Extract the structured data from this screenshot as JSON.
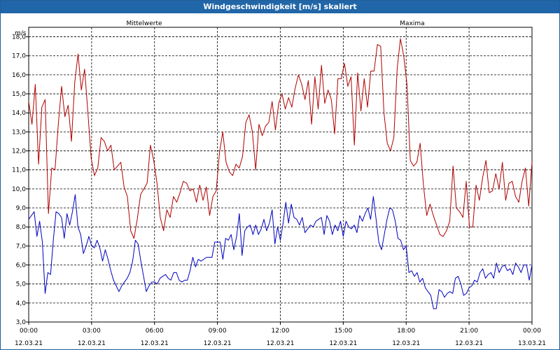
{
  "window": {
    "title": "Windgeschwindigkeit [m/s] skaliert"
  },
  "chart_data": {
    "type": "line",
    "title": "Windgeschwindigkeit [m/s] skaliert",
    "ylabel": "m/s",
    "ylim": [
      3.0,
      18.5
    ],
    "yticks": [
      3.0,
      4.0,
      5.0,
      6.0,
      7.0,
      8.0,
      9.0,
      10.0,
      11.0,
      12.0,
      13.0,
      14.0,
      15.0,
      16.0,
      17.0,
      18.0
    ],
    "ytick_labels": [
      "3,0",
      "4,0",
      "5,0",
      "6,0",
      "7,0",
      "8,0",
      "9,0",
      "10,0",
      "11,0",
      "12,0",
      "13,0",
      "14,0",
      "15,0",
      "16,0",
      "17,0",
      "18,0"
    ],
    "xlim": [
      0,
      24
    ],
    "xticks": [
      0,
      3,
      6,
      9,
      12,
      15,
      18,
      21,
      24
    ],
    "xtick_time_labels": [
      "00:00",
      "03:00",
      "06:00",
      "09:00",
      "12:00",
      "15:00",
      "18:00",
      "21:00",
      "00:00"
    ],
    "xtick_date_labels": [
      "12.03.21",
      "12.03.21",
      "12.03.21",
      "12.03.21",
      "12.03.21",
      "12.03.21",
      "12.03.21",
      "12.03.21",
      "13.03.21"
    ],
    "grid": true,
    "x_unit": "hours",
    "series": [
      {
        "name": "Mittelwerte",
        "color": "#0000c0",
        "values": [
          8.4,
          8.6,
          8.8,
          7.5,
          8.3,
          7.2,
          4.5,
          5.6,
          5.5,
          7.3,
          8.8,
          8.7,
          8.5,
          7.4,
          8.7,
          8.1,
          8.8,
          9.7,
          8.0,
          7.6,
          6.6,
          7.0,
          7.5,
          7.0,
          6.9,
          7.3,
          6.9,
          6.2,
          6.8,
          6.3,
          5.7,
          5.2,
          4.9,
          4.6,
          4.9,
          5.1,
          5.3,
          5.6,
          6.2,
          7.3,
          7.1,
          6.2,
          5.4,
          4.6,
          4.9,
          5.1,
          5.1,
          5.0,
          5.3,
          5.4,
          5.5,
          5.3,
          5.2,
          5.6,
          5.6,
          5.2,
          5.1,
          5.2,
          5.2,
          5.7,
          6.4,
          5.9,
          6.3,
          6.2,
          6.3,
          6.4,
          6.4,
          6.4,
          7.2,
          7.2,
          7.2,
          6.3,
          7.4,
          7.3,
          7.6,
          6.8,
          7.5,
          8.7,
          6.5,
          7.8,
          8.0,
          8.1,
          7.6,
          8.1,
          7.6,
          7.9,
          8.4,
          7.8,
          8.2,
          8.9,
          7.1,
          8.0,
          7.3,
          8.2,
          9.3,
          8.2,
          9.2,
          8.5,
          8.4,
          8.1,
          8.5,
          7.7,
          7.9,
          8.1,
          8.0,
          8.3,
          8.4,
          8.5,
          7.6,
          8.6,
          8.3,
          7.6,
          8.1,
          7.8,
          8.3,
          7.5,
          8.3,
          8.0,
          7.9,
          8.1,
          7.7,
          8.6,
          8.3,
          8.7,
          9.0,
          8.4,
          9.6,
          8.4,
          7.2,
          6.8,
          7.6,
          8.4,
          9.0,
          8.9,
          8.3,
          7.4,
          7.3,
          6.8,
          7.0,
          5.6,
          5.7,
          5.4,
          5.6,
          5.1,
          5.3,
          4.8,
          4.6,
          4.4,
          3.7,
          3.7,
          4.7,
          4.6,
          4.3,
          4.5,
          4.6,
          4.5,
          5.3,
          5.4,
          5.0,
          4.4,
          4.5,
          4.8,
          4.9,
          5.2,
          5.1,
          5.6,
          5.8,
          5.3,
          5.5,
          5.6,
          5.3,
          6.1,
          5.6,
          5.9,
          6.0,
          5.7,
          5.8,
          5.5,
          6.1,
          5.9,
          5.6,
          6.0,
          6.0,
          5.2,
          6.0
        ]
      },
      {
        "name": "Maxima",
        "color": "#b00000",
        "values": [
          14.6,
          13.4,
          15.5,
          11.3,
          14.3,
          14.7,
          8.7,
          11.1,
          11.0,
          13.4,
          15.4,
          13.8,
          14.4,
          12.5,
          15.6,
          17.1,
          15.2,
          16.3,
          14.0,
          11.6,
          10.7,
          11.1,
          12.7,
          12.5,
          12.0,
          12.3,
          11.0,
          11.2,
          11.4,
          10.1,
          9.6,
          7.8,
          7.4,
          8.4,
          9.7,
          10.0,
          10.3,
          12.3,
          11.5,
          10.3,
          8.5,
          7.8,
          8.9,
          8.5,
          9.6,
          9.3,
          9.8,
          10.4,
          10.3,
          9.9,
          10.0,
          9.3,
          10.2,
          9.4,
          10.1,
          8.6,
          9.6,
          9.9,
          11.9,
          13.0,
          11.4,
          10.9,
          10.7,
          11.3,
          11.1,
          11.7,
          13.5,
          13.9,
          13.0,
          11.0,
          13.4,
          12.8,
          13.3,
          13.5,
          14.6,
          13.1,
          14.5,
          15.0,
          14.2,
          14.8,
          14.3,
          15.3,
          16.0,
          15.5,
          14.7,
          15.7,
          13.4,
          15.9,
          14.2,
          16.5,
          14.5,
          15.2,
          14.7,
          12.9,
          15.8,
          15.8,
          16.6,
          15.4,
          15.9,
          12.3,
          16.1,
          14.1,
          15.8,
          14.3,
          16.2,
          16.2,
          17.6,
          17.5,
          14.0,
          12.4,
          12.0,
          12.7,
          16.3,
          17.9,
          17.0,
          15.5,
          11.5,
          11.2,
          11.4,
          12.4,
          10.2,
          8.6,
          9.2,
          8.6,
          8.1,
          7.6,
          7.5,
          7.8,
          8.3,
          11.2,
          9.0,
          8.8,
          8.5,
          10.4,
          8.0,
          8.0,
          10.2,
          9.4,
          10.6,
          11.5,
          9.8,
          9.9,
          10.8,
          10.0,
          11.4,
          9.4,
          10.3,
          10.4,
          9.6,
          9.3,
          10.4,
          11.1,
          9.1,
          11.4
        ]
      }
    ]
  }
}
